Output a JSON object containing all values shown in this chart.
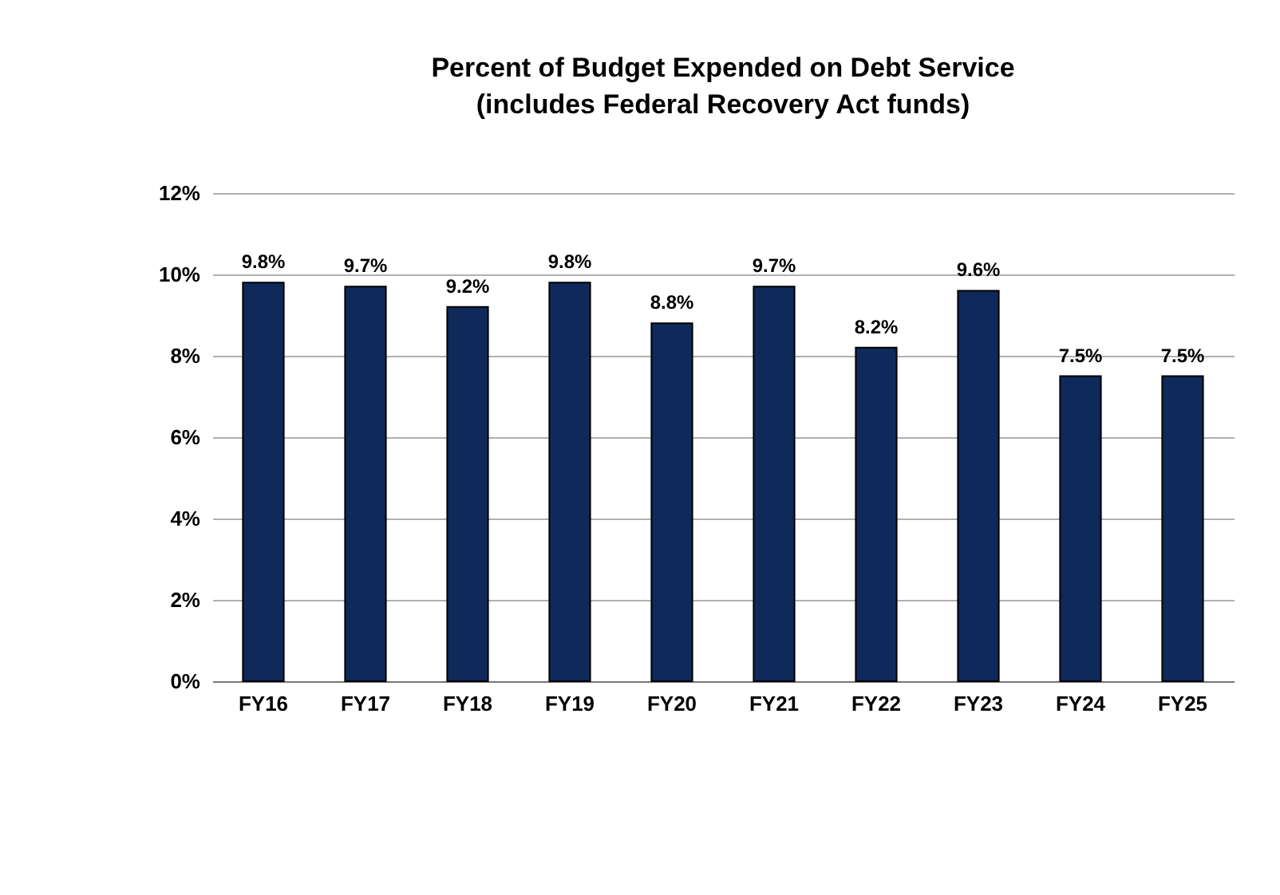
{
  "chart_data": {
    "type": "bar",
    "title": "Percent of Budget Expended on Debt Service",
    "subtitle": "(includes Federal Recovery Act funds)",
    "categories": [
      "FY16",
      "FY17",
      "FY18",
      "FY19",
      "FY20",
      "FY21",
      "FY22",
      "FY23",
      "FY24",
      "FY25"
    ],
    "values": [
      9.8,
      9.7,
      9.2,
      9.8,
      8.8,
      9.7,
      8.2,
      9.6,
      7.5,
      7.5
    ],
    "value_labels": [
      "9.8%",
      "9.7%",
      "9.2%",
      "9.8%",
      "8.8%",
      "9.7%",
      "8.2%",
      "9.6%",
      "7.5%",
      "7.5%"
    ],
    "color": "#0f2a5a",
    "ylim": [
      0,
      12
    ],
    "yticks": [
      {
        "value": 0,
        "label": "0%"
      },
      {
        "value": 2,
        "label": "2%"
      },
      {
        "value": 4,
        "label": "4%"
      },
      {
        "value": 6,
        "label": "6%"
      },
      {
        "value": 8,
        "label": "8%"
      },
      {
        "value": 10,
        "label": "10%"
      },
      {
        "value": 12,
        "label": "12%"
      }
    ],
    "grid": "y"
  }
}
